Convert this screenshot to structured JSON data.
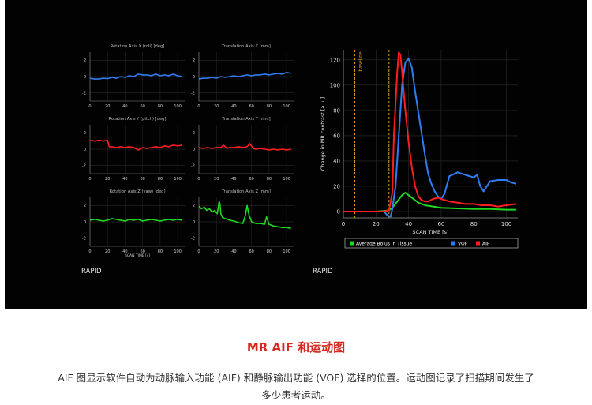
{
  "motion_panel": {
    "x_tick_labels": [
      "0",
      "20",
      "40",
      "60",
      "80",
      "100"
    ],
    "y_tick_labels": [
      "2",
      "0",
      "-2"
    ],
    "xlabel": "SCAN TIME [s]",
    "brand": "RAPID"
  },
  "aif_panel": {
    "brand": "RAPID",
    "baseline_label": "baseline"
  },
  "caption": {
    "title": "MR AIF 和运动图",
    "text": "AIF 图显示软件自动为动脉输入功能 (AIF) 和静脉输出功能 (VOF) 选择的位置。运动图记录了扫描期间发生了多少患者运动。"
  },
  "colors": {
    "panel_bg": "#020202",
    "blue": "#2f7df5",
    "red": "#ff1d1d",
    "green": "#1fd81f",
    "baseline": "#e0a020",
    "caption_title": "#d42a20"
  },
  "chart_data": [
    {
      "type": "line",
      "title": "Rotation Axis X (roll) [deg]",
      "xlim": [
        0,
        108
      ],
      "ylim": [
        -3,
        3
      ],
      "color": "#2f7df5",
      "x": [
        0,
        5,
        10,
        15,
        20,
        25,
        30,
        35,
        40,
        45,
        50,
        55,
        60,
        65,
        70,
        75,
        80,
        85,
        90,
        95,
        100,
        105
      ],
      "y": [
        -0.2,
        -0.3,
        -0.3,
        -0.2,
        -0.25,
        -0.1,
        -0.2,
        0.0,
        -0.1,
        0.1,
        0.0,
        0.3,
        0.2,
        0.2,
        0.1,
        0.3,
        0.1,
        0.2,
        0.1,
        0.3,
        0.1,
        0.0
      ]
    },
    {
      "type": "line",
      "title": "Translation Axis X [mm]",
      "xlim": [
        0,
        108
      ],
      "ylim": [
        -3,
        3
      ],
      "color": "#2f7df5",
      "x": [
        0,
        5,
        10,
        15,
        20,
        25,
        30,
        35,
        40,
        45,
        50,
        55,
        60,
        65,
        70,
        75,
        80,
        85,
        90,
        95,
        100,
        105
      ],
      "y": [
        -0.3,
        -0.2,
        -0.2,
        -0.1,
        -0.2,
        0.0,
        -0.1,
        0.0,
        0.1,
        0.0,
        0.1,
        0.2,
        0.1,
        0.2,
        0.2,
        0.3,
        0.2,
        0.3,
        0.4,
        0.3,
        0.5,
        0.4
      ]
    },
    {
      "type": "line",
      "title": "Rotation Axis Y (pitch) [deg]",
      "xlim": [
        0,
        108
      ],
      "ylim": [
        -3,
        3
      ],
      "color": "#ff1d1d",
      "x": [
        0,
        5,
        10,
        15,
        20,
        22,
        25,
        30,
        35,
        40,
        45,
        50,
        55,
        60,
        65,
        70,
        75,
        80,
        85,
        90,
        95,
        100,
        105
      ],
      "y": [
        1.1,
        1.0,
        1.1,
        1.0,
        1.1,
        0.3,
        0.3,
        0.2,
        0.3,
        0.2,
        0.3,
        0.2,
        -0.1,
        0.2,
        0.1,
        0.2,
        0.3,
        0.2,
        0.4,
        0.3,
        0.5,
        0.4,
        0.5
      ]
    },
    {
      "type": "line",
      "title": "Translation Axis Y [mm]",
      "xlim": [
        0,
        108
      ],
      "ylim": [
        -3,
        3
      ],
      "color": "#ff1d1d",
      "x": [
        0,
        5,
        10,
        15,
        20,
        25,
        28,
        32,
        35,
        40,
        45,
        50,
        55,
        58,
        62,
        65,
        70,
        75,
        80,
        85,
        90,
        95,
        100,
        105
      ],
      "y": [
        0.2,
        0.1,
        0.2,
        0.1,
        0.2,
        0.2,
        0.5,
        0.1,
        0.2,
        0.2,
        0.3,
        0.2,
        0.3,
        0.7,
        0.1,
        0.0,
        0.1,
        0.0,
        -0.1,
        0.0,
        -0.1,
        0.0,
        -0.1,
        0.0
      ]
    },
    {
      "type": "line",
      "title": "Rotation Axis Z (yaw) [deg]",
      "xlim": [
        0,
        108
      ],
      "ylim": [
        -3,
        3
      ],
      "color": "#1fd81f",
      "x": [
        0,
        5,
        10,
        15,
        20,
        25,
        30,
        35,
        40,
        45,
        50,
        55,
        60,
        65,
        70,
        75,
        80,
        85,
        90,
        95,
        100,
        105
      ],
      "y": [
        0.2,
        0.3,
        0.2,
        0.1,
        0.2,
        0.4,
        0.3,
        0.2,
        0.1,
        0.3,
        0.2,
        0.3,
        0.1,
        0.2,
        0.3,
        0.2,
        0.1,
        0.2,
        0.3,
        0.2,
        0.3,
        0.2
      ]
    },
    {
      "type": "line",
      "title": "Translation Axis Z [mm]",
      "xlim": [
        0,
        108
      ],
      "ylim": [
        -3,
        3
      ],
      "color": "#1fd81f",
      "x": [
        0,
        3,
        6,
        9,
        12,
        15,
        18,
        21,
        23,
        24,
        25,
        27,
        30,
        35,
        40,
        45,
        50,
        53,
        55,
        57,
        60,
        65,
        70,
        75,
        77,
        80,
        85,
        90,
        95,
        100,
        105
      ],
      "y": [
        1.9,
        1.6,
        1.8,
        1.4,
        1.6,
        1.2,
        1.4,
        1.0,
        2.5,
        2.2,
        1.0,
        0.5,
        0.4,
        0.2,
        0.1,
        -0.1,
        -0.2,
        0.8,
        2.0,
        0.9,
        0.0,
        -0.2,
        -0.2,
        -0.3,
        0.6,
        -0.3,
        -0.5,
        -0.6,
        -0.7,
        -0.7,
        -0.8
      ]
    },
    {
      "type": "line",
      "xlabel": "SCAN TIME [s]",
      "ylabel": "Change in MR contrast [a.u.]",
      "xlim": [
        0,
        107
      ],
      "ylim": [
        -5,
        128
      ],
      "x_ticks": [
        0,
        20,
        40,
        60,
        80,
        100
      ],
      "y_ticks": [
        0,
        20,
        40,
        60,
        80,
        100,
        120
      ],
      "baseline_x": [
        7,
        28
      ],
      "legend": "bottom",
      "series": [
        {
          "name": "Average Bolus in Tissue",
          "color": "#1fd81f",
          "x": [
            0,
            10,
            20,
            25,
            28,
            30,
            33,
            36,
            38,
            40,
            43,
            46,
            50,
            55,
            60,
            70,
            80,
            90,
            100,
            106
          ],
          "y": [
            0,
            0,
            0,
            0.5,
            1,
            3,
            8,
            13,
            15,
            13,
            10,
            7,
            5,
            4,
            3,
            2.5,
            2,
            2,
            1.5,
            1.5
          ]
        },
        {
          "name": "VOF",
          "color": "#2f7df5",
          "x": [
            0,
            10,
            20,
            25,
            27,
            29,
            30,
            32,
            34,
            36,
            38,
            40,
            42,
            44,
            47,
            50,
            52,
            54,
            56,
            58,
            60,
            62,
            65,
            70,
            75,
            80,
            82,
            84,
            86,
            90,
            95,
            100,
            103,
            106
          ],
          "y": [
            0,
            0,
            0,
            0,
            -3,
            -4,
            2,
            20,
            60,
            100,
            118,
            121,
            114,
            95,
            70,
            45,
            30,
            22,
            16,
            12,
            10,
            14,
            28,
            31,
            29,
            27,
            29,
            20,
            16,
            24,
            25,
            25,
            23,
            22
          ]
        },
        {
          "name": "AIF",
          "color": "#ff1d1d",
          "x": [
            0,
            10,
            20,
            25,
            28,
            30,
            31,
            33,
            34,
            35,
            36,
            38,
            40,
            42,
            44,
            46,
            48,
            50,
            52,
            55,
            58,
            60,
            65,
            70,
            75,
            80,
            85,
            90,
            95,
            100,
            106
          ],
          "y": [
            0,
            0,
            0,
            0,
            1,
            15,
            60,
            110,
            126,
            124,
            110,
            80,
            55,
            35,
            20,
            12,
            9,
            8,
            8,
            10,
            11,
            10,
            8,
            7,
            6,
            6,
            5,
            5,
            4,
            5,
            6
          ]
        }
      ]
    }
  ]
}
